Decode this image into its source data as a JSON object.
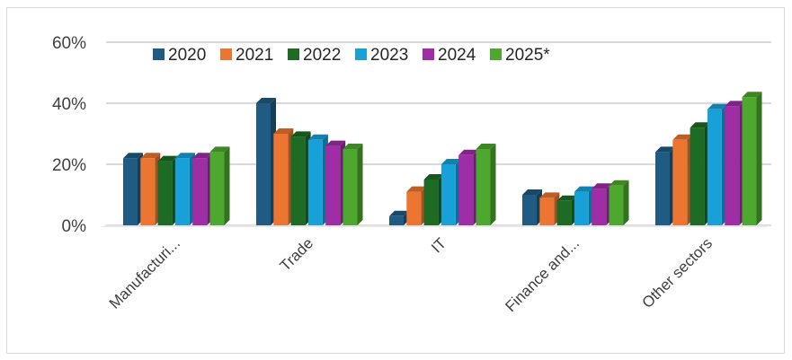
{
  "chart_data": {
    "type": "bar",
    "categories": [
      "Manufacturi...",
      "Trade",
      "IT",
      "Finance and...",
      "Other sectors"
    ],
    "series": [
      {
        "name": "2020",
        "color": "#1f5b82",
        "values": [
          22,
          40,
          3,
          10,
          24
        ]
      },
      {
        "name": "2021",
        "color": "#ec7531",
        "values": [
          22,
          30,
          11,
          9,
          28
        ]
      },
      {
        "name": "2022",
        "color": "#1e6b26",
        "values": [
          21,
          29,
          15,
          8,
          32
        ]
      },
      {
        "name": "2023",
        "color": "#18a0d8",
        "values": [
          22,
          28,
          20,
          11,
          38
        ]
      },
      {
        "name": "2024",
        "color": "#9e2da6",
        "values": [
          22,
          26,
          23,
          12,
          39
        ]
      },
      {
        "name": "2025*",
        "color": "#4ea82f",
        "values": [
          24,
          25,
          25,
          13,
          42
        ]
      }
    ],
    "y_ticks": [
      "0%",
      "20%",
      "40%",
      "60%"
    ],
    "ylim": [
      0,
      60
    ],
    "grid": true,
    "legend_position": "top",
    "title": "",
    "xlabel": "",
    "ylabel": ""
  }
}
